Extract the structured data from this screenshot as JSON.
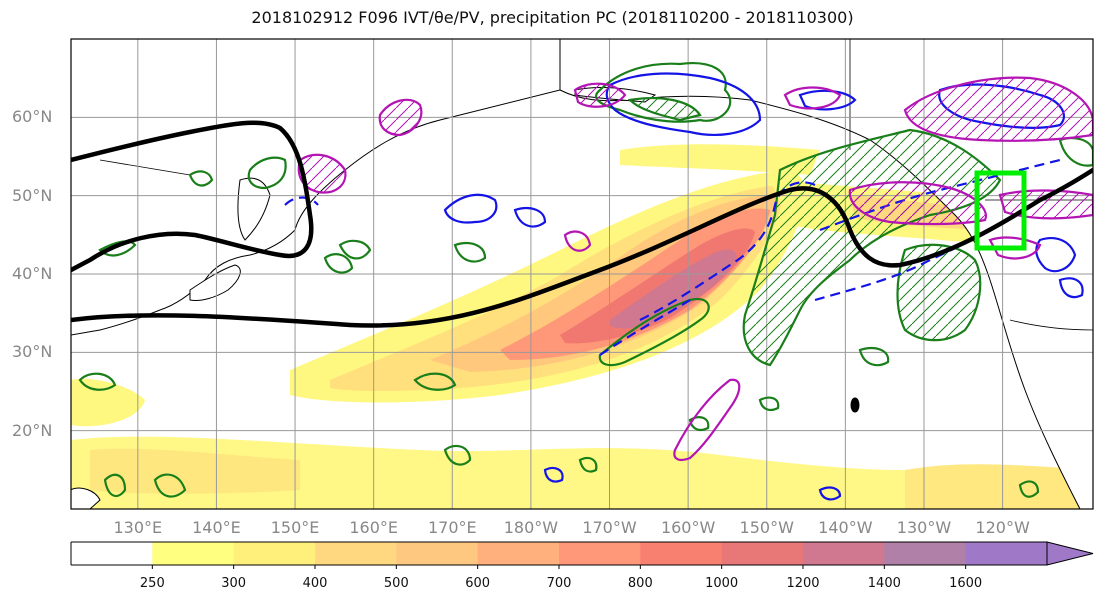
{
  "figure": {
    "title": "2018102912 F096 IVT/θe/PV, precipitation PC (2018110200 - 2018110300)"
  },
  "map": {
    "lat_labels": [
      {
        "text": "60°N",
        "lat": 60
      },
      {
        "text": "50°N",
        "lat": 50
      },
      {
        "text": "40°N",
        "lat": 40
      },
      {
        "text": "30°N",
        "lat": 30
      },
      {
        "text": "20°N",
        "lat": 20
      }
    ],
    "lon_labels": [
      {
        "text": "130°E",
        "lon": 130
      },
      {
        "text": "140°E",
        "lon": 140
      },
      {
        "text": "150°E",
        "lon": 150
      },
      {
        "text": "160°E",
        "lon": 160
      },
      {
        "text": "170°E",
        "lon": 170
      },
      {
        "text": "180°W",
        "lon": 180
      },
      {
        "text": "170°W",
        "lon": 190
      },
      {
        "text": "160°W",
        "lon": 200
      },
      {
        "text": "150°W",
        "lon": 210
      },
      {
        "text": "140°W",
        "lon": 220
      },
      {
        "text": "130°W",
        "lon": 230
      },
      {
        "text": "120°W",
        "lon": 240
      }
    ],
    "lon_range": [
      121.5,
      251.5
    ],
    "lat_range": [
      10,
      70
    ],
    "highlight_box": {
      "lon": [
        234,
        240
      ],
      "lat": [
        43,
        53
      ],
      "color": "#00ee00"
    },
    "colors": {
      "coastline": "#000000",
      "gridline": "#999999",
      "thick_contour": "#000000",
      "green_contour": "#1a7f1a",
      "blue_contour": "#1414e6",
      "magenta_contour": "#b414b4"
    }
  },
  "colorbar": {
    "levels": [
      250,
      300,
      400,
      500,
      600,
      700,
      800,
      1000,
      1200,
      1400,
      1600
    ],
    "labels": [
      "250",
      "300",
      "400",
      "500",
      "600",
      "700",
      "800",
      "1000",
      "1200",
      "1400",
      "1600"
    ],
    "colors": [
      "#ffffff",
      "#ffff80",
      "#fff07c",
      "#ffd880",
      "#ffc880",
      "#ffb07c",
      "#ff9878",
      "#f88070",
      "#e87878",
      "#d07890",
      "#b080a8",
      "#a078c8"
    ]
  }
}
